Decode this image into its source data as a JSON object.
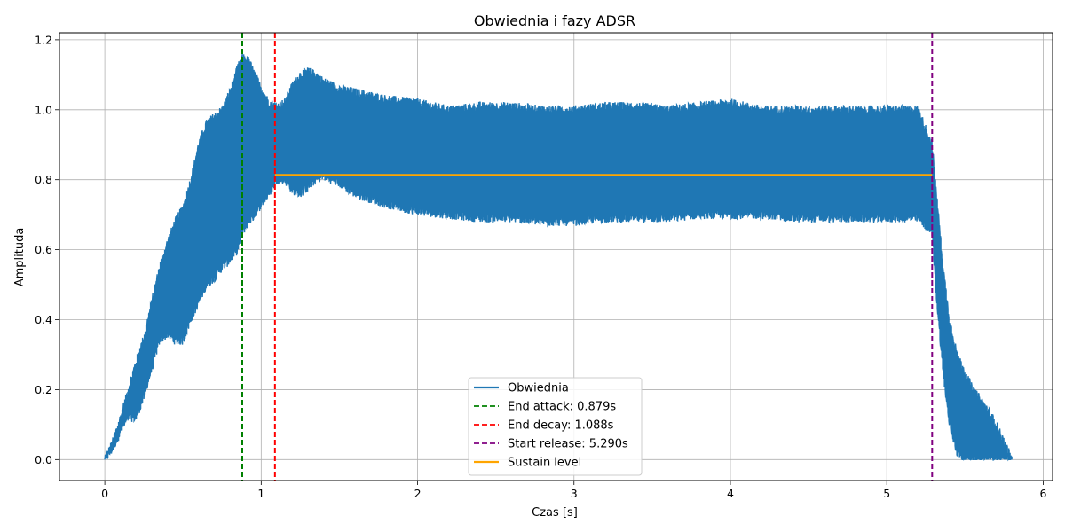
{
  "chart_data": {
    "type": "line",
    "title": "Obwiednia i fazy ADSR",
    "xlabel": "Czas [s]",
    "ylabel": "Amplituda",
    "xlim": [
      -0.29,
      6.06
    ],
    "ylim": [
      -0.06,
      1.22
    ],
    "xticks": [
      0,
      1,
      2,
      3,
      4,
      5,
      6
    ],
    "xtick_labels": [
      "0",
      "1",
      "2",
      "3",
      "4",
      "5",
      "6"
    ],
    "yticks": [
      0.0,
      0.2,
      0.4,
      0.6,
      0.8,
      1.0,
      1.2
    ],
    "ytick_labels": [
      "0.0",
      "0.2",
      "0.4",
      "0.6",
      "0.8",
      "1.0",
      "1.2"
    ],
    "grid": true,
    "legend_position": "bottom-center",
    "series": [
      {
        "name": "Obwiednia",
        "color": "#1f77b4",
        "style": "solid",
        "envelope_upper": {
          "x": [
            0.0,
            0.05,
            0.1,
            0.15,
            0.2,
            0.25,
            0.3,
            0.35,
            0.4,
            0.45,
            0.5,
            0.55,
            0.6,
            0.65,
            0.7,
            0.75,
            0.8,
            0.85,
            0.88,
            0.92,
            0.96,
            1.0,
            1.05,
            1.1,
            1.15,
            1.2,
            1.25,
            1.3,
            1.35,
            1.4,
            1.5,
            1.6,
            1.8,
            2.0,
            2.2,
            2.4,
            2.6,
            2.8,
            3.0,
            3.2,
            3.4,
            3.6,
            3.8,
            4.0,
            4.2,
            4.4,
            4.6,
            4.8,
            5.0,
            5.2,
            5.29,
            5.32,
            5.36,
            5.4,
            5.45,
            5.5,
            5.55,
            5.6,
            5.65,
            5.7,
            5.75,
            5.8
          ],
          "y": [
            0.0,
            0.05,
            0.12,
            0.2,
            0.28,
            0.35,
            0.45,
            0.55,
            0.62,
            0.68,
            0.72,
            0.8,
            0.9,
            0.96,
            0.98,
            1.0,
            1.05,
            1.12,
            1.15,
            1.14,
            1.1,
            1.06,
            1.02,
            1.01,
            1.02,
            1.07,
            1.1,
            1.11,
            1.1,
            1.08,
            1.06,
            1.05,
            1.03,
            1.02,
            1.0,
            1.01,
            1.01,
            1.0,
            1.0,
            1.01,
            1.01,
            1.0,
            1.01,
            1.02,
            1.0,
            1.0,
            1.0,
            1.0,
            1.0,
            1.0,
            0.9,
            0.75,
            0.55,
            0.4,
            0.3,
            0.25,
            0.2,
            0.17,
            0.14,
            0.1,
            0.05,
            0.0
          ]
        },
        "envelope_lower": {
          "x": [
            0.0,
            0.05,
            0.1,
            0.15,
            0.2,
            0.25,
            0.3,
            0.35,
            0.4,
            0.45,
            0.5,
            0.55,
            0.6,
            0.65,
            0.7,
            0.75,
            0.8,
            0.85,
            0.88,
            0.92,
            0.96,
            1.0,
            1.05,
            1.1,
            1.15,
            1.2,
            1.25,
            1.3,
            1.35,
            1.4,
            1.5,
            1.6,
            1.8,
            2.0,
            2.2,
            2.4,
            2.6,
            2.8,
            3.0,
            3.2,
            3.4,
            3.6,
            3.8,
            4.0,
            4.2,
            4.4,
            4.6,
            4.8,
            5.0,
            5.2,
            5.29,
            5.32,
            5.36,
            5.4,
            5.45,
            5.5,
            5.55,
            5.6,
            5.65,
            5.7,
            5.75,
            5.8
          ],
          "y": [
            0.0,
            0.03,
            0.08,
            0.12,
            0.12,
            0.18,
            0.26,
            0.34,
            0.36,
            0.34,
            0.34,
            0.4,
            0.45,
            0.5,
            0.52,
            0.55,
            0.57,
            0.6,
            0.65,
            0.68,
            0.7,
            0.73,
            0.76,
            0.8,
            0.8,
            0.77,
            0.76,
            0.78,
            0.8,
            0.81,
            0.79,
            0.76,
            0.73,
            0.71,
            0.7,
            0.69,
            0.69,
            0.68,
            0.68,
            0.69,
            0.69,
            0.69,
            0.7,
            0.7,
            0.7,
            0.69,
            0.69,
            0.69,
            0.69,
            0.69,
            0.65,
            0.45,
            0.25,
            0.1,
            0.02,
            0.0,
            0.0,
            0.0,
            0.0,
            0.0,
            0.0,
            0.0
          ]
        }
      },
      {
        "name": "End attack: 0.879s",
        "color": "#008000",
        "style": "dashed",
        "x": 0.879
      },
      {
        "name": "End decay: 1.088s",
        "color": "#ff0000",
        "style": "dashed",
        "x": 1.088
      },
      {
        "name": "Start release: 5.290s",
        "color": "#800080",
        "style": "dashed",
        "x": 5.29
      },
      {
        "name": "Sustain level",
        "color": "#ffa500",
        "style": "solid",
        "y": 0.814,
        "x_range": [
          1.088,
          5.29
        ]
      }
    ]
  }
}
